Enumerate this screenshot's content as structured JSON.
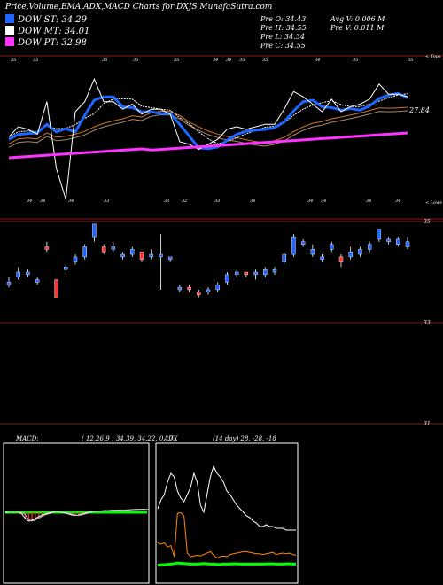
{
  "header": {
    "title": "Price,Volume,EMA,ADX,MACD Charts for DXJS MunafaSutra.com",
    "pre_open": "Pre  O: 34.43",
    "pre_high": "Pre  H: 34.55",
    "pre_low": "Pre  L: 34.34",
    "pre_close": "Pre  C: 34.55",
    "avg_volume": "Avg V: 0.006  M",
    "pre_volume": "Pre  V: 0.011 M"
  },
  "legend": [
    {
      "label": "DOW ST: 34.29",
      "color": "#1e66ff"
    },
    {
      "label": "DOW MT: 34.01",
      "color": "#ffffff"
    },
    {
      "label": "DOW PT: 32.98",
      "color": "#ff33ff"
    }
  ],
  "top_chart": {
    "topline_label": "< Tops",
    "lowline_label": "< Lows",
    "value_label": "27.84",
    "top_markers": [
      {
        "x": 37,
        "label": "35"
      },
      {
        "x": 115,
        "label": "35"
      },
      {
        "x": 150,
        "label": "35"
      },
      {
        "x": 196,
        "label": "35"
      },
      {
        "x": 240,
        "label": "34"
      },
      {
        "x": 255,
        "label": "34"
      },
      {
        "x": 270,
        "label": "35"
      },
      {
        "x": 296,
        "label": "35"
      },
      {
        "x": 355,
        "label": "34"
      },
      {
        "x": 398,
        "label": "35"
      },
      {
        "x": 460,
        "label": "35"
      },
      {
        "x": 12,
        "label": "35"
      }
    ],
    "low_markers": [
      {
        "x": 30,
        "label": "34"
      },
      {
        "x": 45,
        "label": "34"
      },
      {
        "x": 77,
        "label": "34"
      },
      {
        "x": 117,
        "label": "33"
      },
      {
        "x": 185,
        "label": "33"
      },
      {
        "x": 205,
        "label": "32"
      },
      {
        "x": 242,
        "label": "33"
      },
      {
        "x": 282,
        "label": "34"
      },
      {
        "x": 347,
        "label": "34"
      },
      {
        "x": 362,
        "label": "34"
      },
      {
        "x": 413,
        "label": "34"
      },
      {
        "x": 446,
        "label": "34"
      }
    ]
  },
  "price_axis": [
    "35",
    "33",
    "31"
  ],
  "macd": {
    "label": "MACD:",
    "values": "( 12,26,9 ) 34.39, 34.22, 0.17"
  },
  "adx": {
    "label": "ADX",
    "values": "(14  day) 28, -28, -18"
  },
  "colors": {
    "blue": "#1e66ff",
    "magenta": "#ff33ff",
    "red": "#ff3333",
    "green": "#00ff00",
    "orange": "#ff8800",
    "brown": "#8a1a1a"
  },
  "chart_data": {
    "type": "candlestick",
    "yticks": [
      35,
      33,
      31
    ],
    "candles": [
      {
        "o": 33.75,
        "c": 33.8,
        "h": 33.9,
        "l": 33.7,
        "color": "blue"
      },
      {
        "o": 33.9,
        "c": 34.0,
        "h": 34.1,
        "l": 33.85,
        "color": "blue"
      },
      {
        "o": 34.0,
        "c": 33.95,
        "h": 34.05,
        "l": 33.9,
        "color": "blue"
      },
      {
        "o": 33.8,
        "c": 33.85,
        "h": 33.9,
        "l": 33.75,
        "color": "blue"
      },
      {
        "o": 34.45,
        "c": 34.5,
        "h": 34.6,
        "l": 34.4,
        "color": "red"
      },
      {
        "o": 33.85,
        "c": 33.5,
        "h": 33.85,
        "l": 33.5,
        "color": "red"
      },
      {
        "o": 34.1,
        "c": 34.05,
        "h": 34.15,
        "l": 33.95,
        "color": "blue"
      },
      {
        "o": 34.2,
        "c": 34.3,
        "h": 34.35,
        "l": 34.15,
        "color": "blue"
      },
      {
        "o": 34.3,
        "c": 34.5,
        "h": 34.55,
        "l": 34.25,
        "color": "blue"
      },
      {
        "o": 34.7,
        "c": 34.95,
        "h": 34.95,
        "l": 34.6,
        "color": "blue"
      },
      {
        "o": 34.4,
        "c": 34.5,
        "h": 34.55,
        "l": 34.35,
        "color": "red"
      },
      {
        "o": 34.45,
        "c": 34.5,
        "h": 34.6,
        "l": 34.4,
        "color": "blue"
      },
      {
        "o": 34.3,
        "c": 34.35,
        "h": 34.4,
        "l": 34.25,
        "color": "blue"
      },
      {
        "o": 34.35,
        "c": 34.45,
        "h": 34.5,
        "l": 34.3,
        "color": "blue"
      },
      {
        "o": 34.4,
        "c": 34.25,
        "h": 34.4,
        "l": 34.2,
        "color": "red"
      },
      {
        "o": 34.3,
        "c": 34.35,
        "h": 34.45,
        "l": 34.25,
        "color": "blue"
      },
      {
        "o": 34.3,
        "c": 34.35,
        "h": 34.75,
        "l": 33.65,
        "color": "blue"
      },
      {
        "o": 34.3,
        "c": 34.25,
        "h": 34.3,
        "l": 34.2,
        "color": "blue"
      },
      {
        "o": 33.65,
        "c": 33.7,
        "h": 33.75,
        "l": 33.6,
        "color": "blue"
      },
      {
        "o": 33.7,
        "c": 33.65,
        "h": 33.75,
        "l": 33.6,
        "color": "red"
      },
      {
        "o": 33.6,
        "c": 33.55,
        "h": 33.65,
        "l": 33.5,
        "color": "red"
      },
      {
        "o": 33.6,
        "c": 33.65,
        "h": 33.7,
        "l": 33.55,
        "color": "blue"
      },
      {
        "o": 33.65,
        "c": 33.75,
        "h": 33.8,
        "l": 33.6,
        "color": "blue"
      },
      {
        "o": 33.8,
        "c": 33.95,
        "h": 34.0,
        "l": 33.75,
        "color": "blue"
      },
      {
        "o": 33.95,
        "c": 34.0,
        "h": 34.05,
        "l": 33.9,
        "color": "blue"
      },
      {
        "o": 34.0,
        "c": 33.95,
        "h": 34.0,
        "l": 33.9,
        "color": "red"
      },
      {
        "o": 33.95,
        "c": 34.0,
        "h": 34.05,
        "l": 33.85,
        "color": "blue"
      },
      {
        "o": 33.95,
        "c": 34.05,
        "h": 34.1,
        "l": 33.9,
        "color": "blue"
      },
      {
        "o": 34.0,
        "c": 34.05,
        "h": 34.1,
        "l": 33.95,
        "color": "blue"
      },
      {
        "o": 34.2,
        "c": 34.35,
        "h": 34.4,
        "l": 34.15,
        "color": "blue"
      },
      {
        "o": 34.35,
        "c": 34.7,
        "h": 34.75,
        "l": 34.3,
        "color": "blue"
      },
      {
        "o": 34.55,
        "c": 34.6,
        "h": 34.65,
        "l": 34.5,
        "color": "blue"
      },
      {
        "o": 34.35,
        "c": 34.45,
        "h": 34.55,
        "l": 34.3,
        "color": "blue"
      },
      {
        "o": 34.25,
        "c": 34.3,
        "h": 34.35,
        "l": 34.2,
        "color": "blue"
      },
      {
        "o": 34.45,
        "c": 34.55,
        "h": 34.6,
        "l": 34.4,
        "color": "blue"
      },
      {
        "o": 34.2,
        "c": 34.3,
        "h": 34.35,
        "l": 34.1,
        "color": "red"
      },
      {
        "o": 34.3,
        "c": 34.4,
        "h": 34.5,
        "l": 34.25,
        "color": "blue"
      },
      {
        "o": 34.35,
        "c": 34.45,
        "h": 34.5,
        "l": 34.3,
        "color": "blue"
      },
      {
        "o": 34.45,
        "c": 34.55,
        "h": 34.6,
        "l": 34.4,
        "color": "blue"
      },
      {
        "o": 34.65,
        "c": 34.85,
        "h": 34.85,
        "l": 34.6,
        "color": "blue"
      },
      {
        "o": 34.6,
        "c": 34.65,
        "h": 34.7,
        "l": 34.55,
        "color": "blue"
      },
      {
        "o": 34.55,
        "c": 34.65,
        "h": 34.7,
        "l": 34.5,
        "color": "blue"
      },
      {
        "o": 34.5,
        "c": 34.6,
        "h": 34.7,
        "l": 34.45,
        "color": "blue"
      }
    ],
    "macd_line": [
      0,
      0,
      0,
      0,
      0,
      -0.1,
      -0.35,
      -0.5,
      -0.45,
      -0.35,
      -0.25,
      -0.15,
      -0.1,
      -0.05,
      0,
      0.02,
      0.02,
      0,
      -0.05,
      -0.1,
      -0.15,
      -0.18,
      -0.15,
      -0.1,
      -0.05,
      0,
      0.03,
      0.05,
      0.06,
      0.08,
      0.1,
      0.1,
      0.12,
      0.12,
      0.13,
      0.12,
      0.13,
      0.14,
      0.15,
      0.16,
      0.17,
      0.17,
      0.17
    ],
    "adx_plus": [
      22,
      20,
      22,
      16,
      18,
      15,
      26,
      27,
      22,
      20,
      15,
      16,
      17,
      16,
      18,
      20,
      22,
      17,
      13,
      15,
      16,
      15,
      18,
      19,
      20,
      21,
      22,
      22,
      21,
      20,
      19,
      19,
      18,
      19,
      20,
      21,
      18,
      19,
      20,
      19,
      20,
      18,
      17
    ],
    "adx_plus_scale_note": "",
    "adx_minus": [
      8,
      9,
      10,
      11,
      12,
      14,
      16,
      15,
      14,
      13,
      12,
      12,
      12,
      13,
      14,
      13,
      12,
      12,
      11,
      11,
      12,
      12,
      12,
      13,
      13,
      12,
      12,
      12,
      12,
      12,
      12,
      12,
      12,
      13,
      13,
      13,
      12,
      12,
      12,
      13,
      13,
      12,
      12
    ],
    "adx_line": [
      40,
      45,
      48,
      55,
      60,
      58,
      50,
      46,
      44,
      48,
      52,
      60,
      55,
      42,
      38,
      48,
      58,
      64,
      60,
      58,
      55,
      50,
      48,
      45,
      42,
      40,
      38,
      36,
      35,
      33,
      32,
      30,
      30,
      31,
      30,
      30,
      29,
      29,
      29,
      28,
      28,
      28,
      28
    ]
  }
}
